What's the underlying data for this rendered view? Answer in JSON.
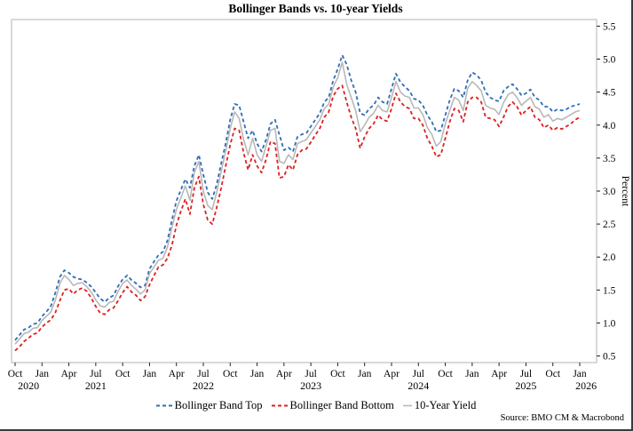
{
  "title": "Bollinger Bands vs. 10-year Yields",
  "source": "Source: BMO CM & Macrobond",
  "legend": [
    {
      "label": "Bollinger Band Top"
    },
    {
      "label": "Bollinger Band Bottom"
    },
    {
      "label": "10-Year Yield"
    }
  ],
  "chart_data": {
    "type": "line",
    "title": "Bollinger Bands vs. 10-year Yields",
    "xlabel": "",
    "ylabel": "Percent",
    "ylim": [
      0.4,
      5.6
    ],
    "y_ticks": [
      0.5,
      1.0,
      1.5,
      2.0,
      2.5,
      3.0,
      3.5,
      4.0,
      4.5,
      5.0,
      5.5
    ],
    "y_axis_side": "right",
    "grid": false,
    "legend_position": "bottom",
    "x_start": "Oct 2020",
    "x_end": "Jan 2026",
    "points_per_month": 2,
    "x_ticks": [
      {
        "m": 0,
        "label": "Oct"
      },
      {
        "m": 3,
        "label": "Jan"
      },
      {
        "m": 6,
        "label": "Apr"
      },
      {
        "m": 9,
        "label": "Jul"
      },
      {
        "m": 12,
        "label": "Oct"
      },
      {
        "m": 15,
        "label": "Jan"
      },
      {
        "m": 18,
        "label": "Apr"
      },
      {
        "m": 21,
        "label": "Jul"
      },
      {
        "m": 24,
        "label": "Oct"
      },
      {
        "m": 27,
        "label": "Jan"
      },
      {
        "m": 30,
        "label": "Apr"
      },
      {
        "m": 33,
        "label": "Jul"
      },
      {
        "m": 36,
        "label": "Oct"
      },
      {
        "m": 39,
        "label": "Jan"
      },
      {
        "m": 42,
        "label": "Apr"
      },
      {
        "m": 45,
        "label": "Jul"
      },
      {
        "m": 48,
        "label": "Oct"
      },
      {
        "m": 51,
        "label": "Jan"
      },
      {
        "m": 54,
        "label": "Apr"
      },
      {
        "m": 57,
        "label": "Jul"
      },
      {
        "m": 60,
        "label": "Oct"
      },
      {
        "m": 63,
        "label": "Jan"
      }
    ],
    "year_labels": [
      {
        "m": 1.5,
        "label": "2020"
      },
      {
        "m": 9,
        "label": "2021"
      },
      {
        "m": 21,
        "label": "2022"
      },
      {
        "m": 33,
        "label": "2023"
      },
      {
        "m": 45,
        "label": "2024"
      },
      {
        "m": 57,
        "label": "2025"
      },
      {
        "m": 63.7,
        "label": "2026"
      }
    ],
    "series": [
      {
        "name": "Bollinger Band Top",
        "color": "#2f6db4",
        "dash": "4,3",
        "width": 1.8,
        "values": [
          0.74,
          0.82,
          0.9,
          0.93,
          0.98,
          1.0,
          1.1,
          1.17,
          1.26,
          1.46,
          1.7,
          1.8,
          1.76,
          1.7,
          1.67,
          1.66,
          1.61,
          1.55,
          1.46,
          1.37,
          1.32,
          1.38,
          1.42,
          1.56,
          1.66,
          1.72,
          1.65,
          1.6,
          1.54,
          1.57,
          1.82,
          1.93,
          2.03,
          2.08,
          2.25,
          2.56,
          2.85,
          3.02,
          3.18,
          3.05,
          3.38,
          3.55,
          3.25,
          2.98,
          2.88,
          3.1,
          3.42,
          3.72,
          4.08,
          4.32,
          4.3,
          4.05,
          3.8,
          3.92,
          3.72,
          3.6,
          3.78,
          4.02,
          4.08,
          3.85,
          3.62,
          3.66,
          3.6,
          3.82,
          3.86,
          3.88,
          3.98,
          4.08,
          4.18,
          4.35,
          4.42,
          4.68,
          4.85,
          5.06,
          4.92,
          4.68,
          4.5,
          4.18,
          4.15,
          4.25,
          4.3,
          4.42,
          4.35,
          4.32,
          4.55,
          4.78,
          4.65,
          4.58,
          4.52,
          4.4,
          4.38,
          4.3,
          4.15,
          4.05,
          3.9,
          3.92,
          4.15,
          4.38,
          4.55,
          4.52,
          4.42,
          4.68,
          4.8,
          4.76,
          4.68,
          4.5,
          4.42,
          4.38,
          4.36,
          4.52,
          4.58,
          4.62,
          4.55,
          4.45,
          4.48,
          4.54,
          4.42,
          4.38,
          4.28,
          4.28,
          4.2,
          4.24,
          4.22,
          4.24,
          4.28,
          4.3,
          4.32
        ]
      },
      {
        "name": "Bollinger Band Bottom",
        "color": "#dd2020",
        "dash": "4,3",
        "width": 1.8,
        "values": [
          0.58,
          0.64,
          0.72,
          0.77,
          0.83,
          0.85,
          0.94,
          1.0,
          1.05,
          1.16,
          1.34,
          1.5,
          1.52,
          1.44,
          1.5,
          1.53,
          1.48,
          1.38,
          1.25,
          1.15,
          1.13,
          1.2,
          1.23,
          1.34,
          1.46,
          1.55,
          1.47,
          1.42,
          1.34,
          1.4,
          1.58,
          1.72,
          1.85,
          1.88,
          1.98,
          2.18,
          2.48,
          2.7,
          2.88,
          2.65,
          3.05,
          3.22,
          2.8,
          2.56,
          2.5,
          2.75,
          3.05,
          3.38,
          3.7,
          3.95,
          3.92,
          3.58,
          3.32,
          3.55,
          3.38,
          3.28,
          3.48,
          3.75,
          3.72,
          3.2,
          3.22,
          3.4,
          3.32,
          3.55,
          3.62,
          3.64,
          3.74,
          3.85,
          3.95,
          4.12,
          4.2,
          4.44,
          4.55,
          4.6,
          4.35,
          4.12,
          3.95,
          3.65,
          3.82,
          3.95,
          4.02,
          4.15,
          4.08,
          4.06,
          4.25,
          4.48,
          4.35,
          4.28,
          4.25,
          4.1,
          4.1,
          4.0,
          3.8,
          3.68,
          3.52,
          3.55,
          3.8,
          4.05,
          4.25,
          4.22,
          4.05,
          4.35,
          4.42,
          4.42,
          4.35,
          4.12,
          4.1,
          4.08,
          3.98,
          4.12,
          4.28,
          4.35,
          4.28,
          4.15,
          4.22,
          4.28,
          4.12,
          4.08,
          3.96,
          4.0,
          3.92,
          3.96,
          3.94,
          3.98,
          4.02,
          4.08,
          4.12
        ]
      },
      {
        "name": "10-Year Yield",
        "color": "#b8b8b8",
        "dash": null,
        "width": 1.6,
        "values": [
          0.68,
          0.76,
          0.84,
          0.86,
          0.92,
          0.93,
          1.04,
          1.1,
          1.17,
          1.35,
          1.6,
          1.72,
          1.66,
          1.57,
          1.6,
          1.61,
          1.55,
          1.47,
          1.35,
          1.26,
          1.24,
          1.31,
          1.33,
          1.48,
          1.6,
          1.65,
          1.57,
          1.51,
          1.44,
          1.5,
          1.75,
          1.85,
          1.95,
          1.98,
          2.15,
          2.45,
          2.72,
          2.9,
          3.08,
          2.86,
          3.28,
          3.45,
          3.0,
          2.78,
          2.72,
          2.98,
          3.3,
          3.6,
          3.95,
          4.2,
          4.1,
          3.78,
          3.55,
          3.8,
          3.55,
          3.45,
          3.68,
          3.92,
          3.95,
          3.45,
          3.42,
          3.55,
          3.48,
          3.72,
          3.75,
          3.78,
          3.88,
          3.98,
          4.08,
          4.25,
          4.32,
          4.58,
          4.72,
          4.95,
          4.62,
          4.42,
          4.22,
          3.9,
          4.0,
          4.12,
          4.18,
          4.3,
          4.22,
          4.2,
          4.42,
          4.66,
          4.5,
          4.44,
          4.42,
          4.26,
          4.26,
          4.16,
          3.96,
          3.86,
          3.68,
          3.75,
          4.02,
          4.22,
          4.42,
          4.38,
          4.22,
          4.56,
          4.66,
          4.6,
          4.52,
          4.3,
          4.26,
          4.24,
          4.16,
          4.34,
          4.46,
          4.5,
          4.42,
          4.3,
          4.36,
          4.42,
          4.28,
          4.24,
          4.12,
          4.16,
          4.06,
          4.1,
          4.08,
          4.12,
          4.16,
          4.2,
          4.22
        ]
      }
    ],
    "frame_color": "#b3b3b3"
  }
}
